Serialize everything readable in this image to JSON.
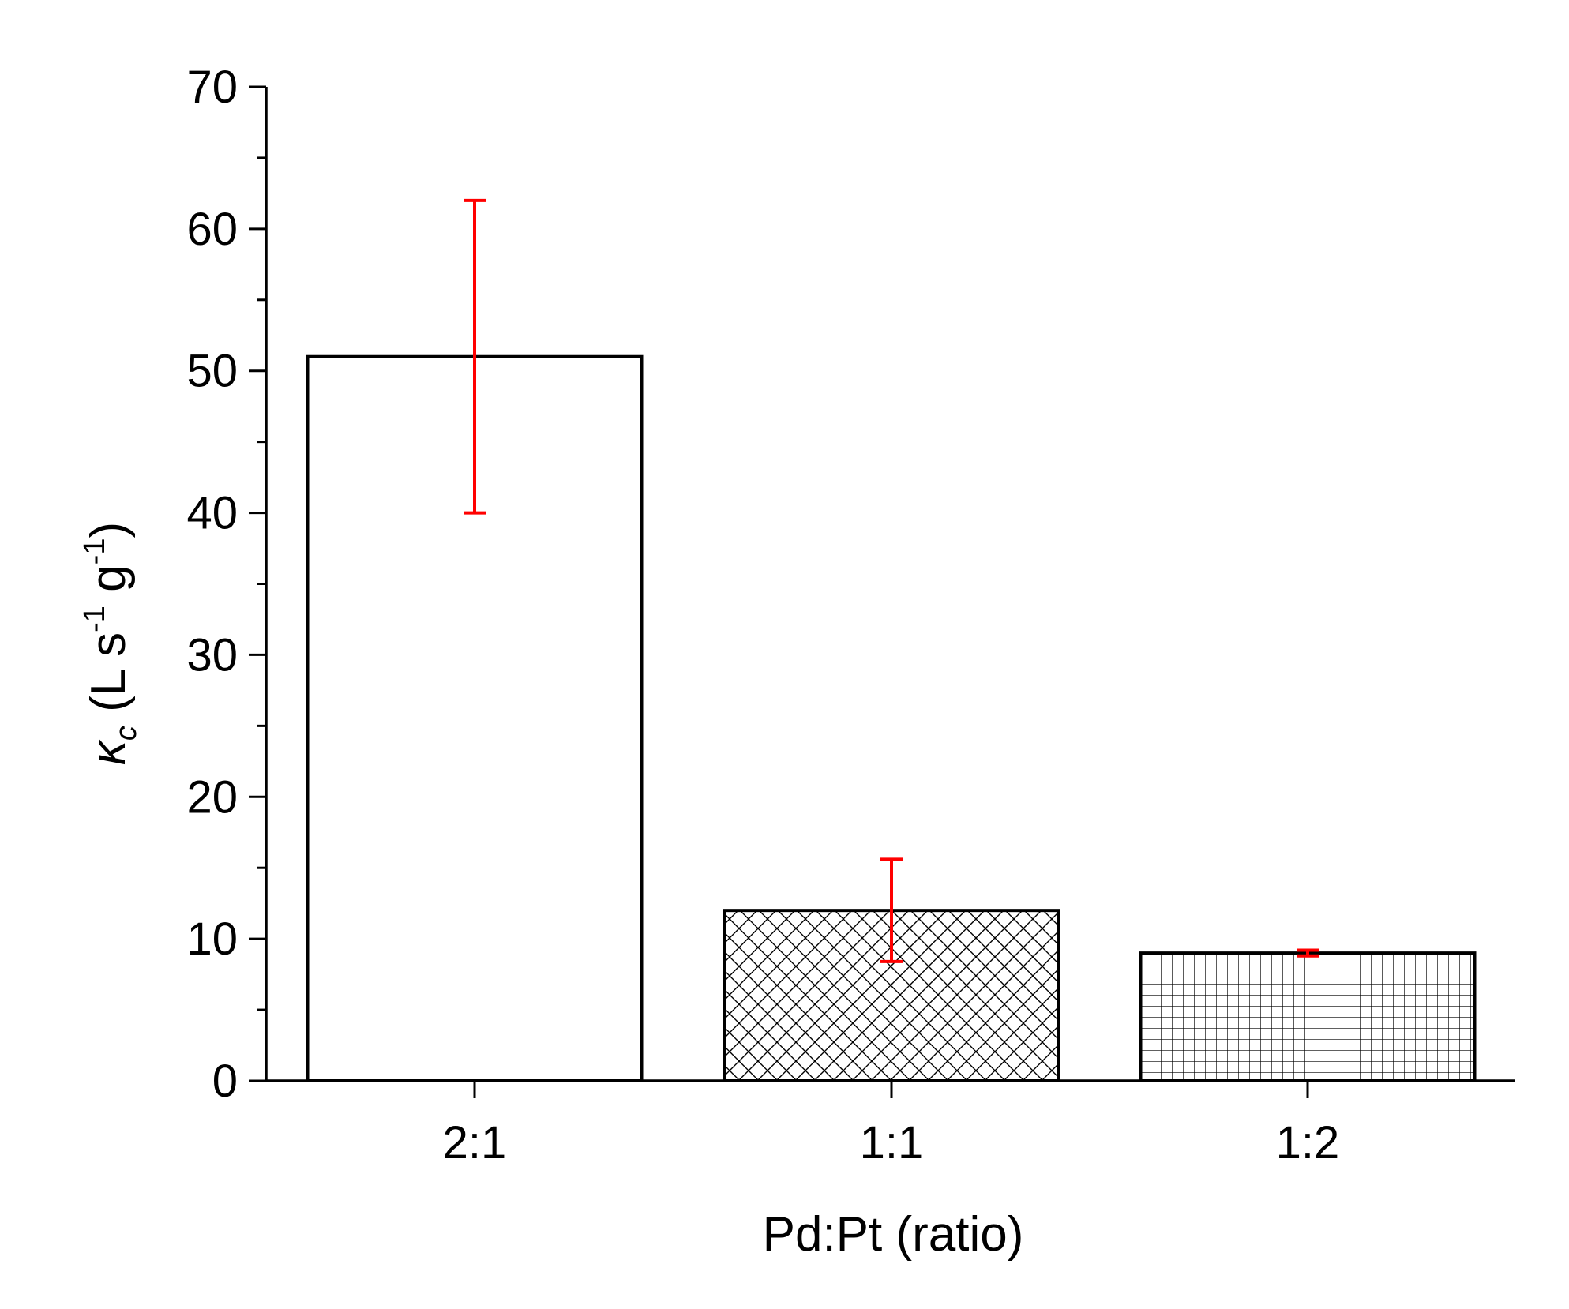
{
  "chart_data": {
    "type": "bar",
    "categories": [
      "2:1",
      "1:1",
      "1:2"
    ],
    "values": [
      51,
      12,
      9
    ],
    "error_bars": [
      {
        "low": 40,
        "high": 62
      },
      {
        "low": 8.4,
        "high": 15.6
      },
      {
        "low": 8.8,
        "high": 9.2
      }
    ],
    "fill_patterns": [
      "none",
      "diagonal-crosshatch",
      "grid"
    ],
    "xlabel": "Pd:Pt (ratio)",
    "ylabel": {
      "symbol": "κ",
      "subscript": "c",
      "open": " (L s",
      "sup1": "-1",
      "mid": " g",
      "sup2": "-1",
      "close": ")"
    },
    "ylim": [
      0,
      70
    ],
    "yticks": [
      0,
      10,
      20,
      30,
      40,
      50,
      60,
      70
    ],
    "grid": false,
    "colors": {
      "bar_stroke": "#000000",
      "bar_fill": "#ffffff",
      "error_bar": "#ff0000"
    }
  }
}
